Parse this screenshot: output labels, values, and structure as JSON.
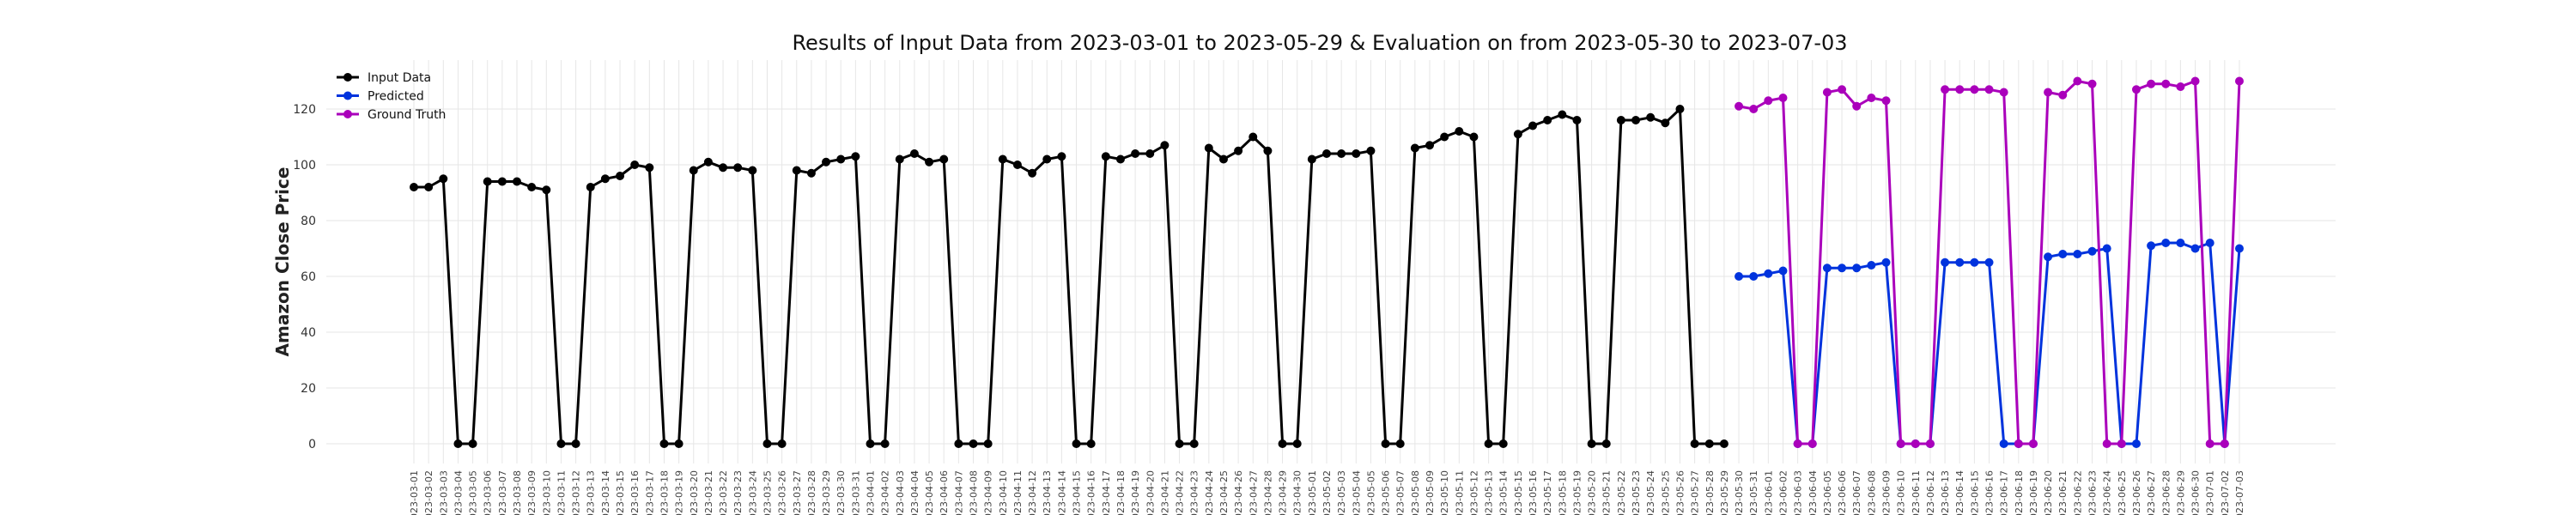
{
  "chart_data": {
    "type": "line",
    "title": "Results of Input Data from 2023-03-01 to 2023-05-29 & Evaluation on from 2023-05-30 to 2023-07-03",
    "xlabel": "",
    "ylabel": "Amazon Close Price",
    "ylim": [
      -8,
      137
    ],
    "yticks": [
      0,
      20,
      40,
      60,
      80,
      100,
      120
    ],
    "grid": true,
    "legend_position": "top-left",
    "series": [
      {
        "name": "Input Data",
        "color": "#000000",
        "x": [
          "2023-03-01",
          "2023-03-02",
          "2023-03-03",
          "2023-03-04",
          "2023-03-05",
          "2023-03-06",
          "2023-03-07",
          "2023-03-08",
          "2023-03-09",
          "2023-03-10",
          "2023-03-11",
          "2023-03-12",
          "2023-03-13",
          "2023-03-14",
          "2023-03-15",
          "2023-03-16",
          "2023-03-17",
          "2023-03-18",
          "2023-03-19",
          "2023-03-20",
          "2023-03-21",
          "2023-03-22",
          "2023-03-23",
          "2023-03-24",
          "2023-03-25",
          "2023-03-26",
          "2023-03-27",
          "2023-03-28",
          "2023-03-29",
          "2023-03-30",
          "2023-03-31",
          "2023-04-01",
          "2023-04-02",
          "2023-04-03",
          "2023-04-04",
          "2023-04-05",
          "2023-04-06",
          "2023-04-07",
          "2023-04-08",
          "2023-04-09",
          "2023-04-10",
          "2023-04-11",
          "2023-04-12",
          "2023-04-13",
          "2023-04-14",
          "2023-04-15",
          "2023-04-16",
          "2023-04-17",
          "2023-04-18",
          "2023-04-19",
          "2023-04-20",
          "2023-04-21",
          "2023-04-22",
          "2023-04-23",
          "2023-04-24",
          "2023-04-25",
          "2023-04-26",
          "2023-04-27",
          "2023-04-28",
          "2023-04-29",
          "2023-04-30",
          "2023-05-01",
          "2023-05-02",
          "2023-05-03",
          "2023-05-04",
          "2023-05-05",
          "2023-05-06",
          "2023-05-07",
          "2023-05-08",
          "2023-05-09",
          "2023-05-10",
          "2023-05-11",
          "2023-05-12",
          "2023-05-13",
          "2023-05-14",
          "2023-05-15",
          "2023-05-16",
          "2023-05-17",
          "2023-05-18",
          "2023-05-19",
          "2023-05-20",
          "2023-05-21",
          "2023-05-22",
          "2023-05-23",
          "2023-05-24",
          "2023-05-25",
          "2023-05-26",
          "2023-05-27",
          "2023-05-28",
          "2023-05-29"
        ],
        "values": [
          92,
          92,
          95,
          0,
          0,
          94,
          94,
          94,
          92,
          91,
          0,
          0,
          92,
          95,
          96,
          100,
          99,
          0,
          0,
          98,
          101,
          99,
          99,
          98,
          0,
          0,
          98,
          97,
          101,
          102,
          103,
          0,
          0,
          102,
          104,
          101,
          102,
          0,
          0,
          0,
          102,
          100,
          97,
          102,
          103,
          0,
          0,
          103,
          102,
          104,
          104,
          107,
          0,
          0,
          106,
          102,
          105,
          110,
          105,
          0,
          0,
          102,
          104,
          104,
          104,
          105,
          0,
          0,
          106,
          107,
          110,
          112,
          110,
          0,
          0,
          111,
          114,
          116,
          118,
          116,
          0,
          0,
          116,
          116,
          117,
          115,
          120,
          0,
          0,
          0
        ]
      },
      {
        "name": "Predicted",
        "color": "#0033dd",
        "x": [
          "2023-05-30",
          "2023-05-31",
          "2023-06-01",
          "2023-06-02",
          "2023-06-03",
          "2023-06-04",
          "2023-06-05",
          "2023-06-06",
          "2023-06-07",
          "2023-06-08",
          "2023-06-09",
          "2023-06-10",
          "2023-06-11",
          "2023-06-12",
          "2023-06-13",
          "2023-06-14",
          "2023-06-15",
          "2023-06-16",
          "2023-06-17",
          "2023-06-18",
          "2023-06-19",
          "2023-06-20",
          "2023-06-21",
          "2023-06-22",
          "2023-06-23",
          "2023-06-24",
          "2023-06-25",
          "2023-06-26",
          "2023-06-27",
          "2023-06-28",
          "2023-06-29",
          "2023-06-30",
          "2023-07-01",
          "2023-07-02",
          "2023-07-03"
        ],
        "values": [
          60,
          60,
          61,
          62,
          0,
          0,
          63,
          63,
          63,
          64,
          65,
          0,
          0,
          0,
          65,
          65,
          65,
          65,
          0,
          0,
          0,
          67,
          68,
          68,
          69,
          70,
          0,
          0,
          71,
          72,
          72,
          70,
          72,
          0,
          70
        ]
      },
      {
        "name": "Ground Truth",
        "color": "#aa00bb",
        "x": [
          "2023-05-30",
          "2023-05-31",
          "2023-06-01",
          "2023-06-02",
          "2023-06-03",
          "2023-06-04",
          "2023-06-05",
          "2023-06-06",
          "2023-06-07",
          "2023-06-08",
          "2023-06-09",
          "2023-06-10",
          "2023-06-11",
          "2023-06-12",
          "2023-06-13",
          "2023-06-14",
          "2023-06-15",
          "2023-06-16",
          "2023-06-17",
          "2023-06-18",
          "2023-06-19",
          "2023-06-20",
          "2023-06-21",
          "2023-06-22",
          "2023-06-23",
          "2023-06-24",
          "2023-06-25",
          "2023-06-26",
          "2023-06-27",
          "2023-06-28",
          "2023-06-29",
          "2023-06-30",
          "2023-07-01",
          "2023-07-02",
          "2023-07-03"
        ],
        "values": [
          121,
          120,
          123,
          124,
          0,
          0,
          126,
          127,
          121,
          124,
          123,
          0,
          0,
          0,
          127,
          127,
          127,
          127,
          126,
          0,
          0,
          126,
          125,
          130,
          129,
          0,
          0,
          127,
          129,
          129,
          128,
          130,
          0,
          0,
          130
        ]
      }
    ]
  }
}
